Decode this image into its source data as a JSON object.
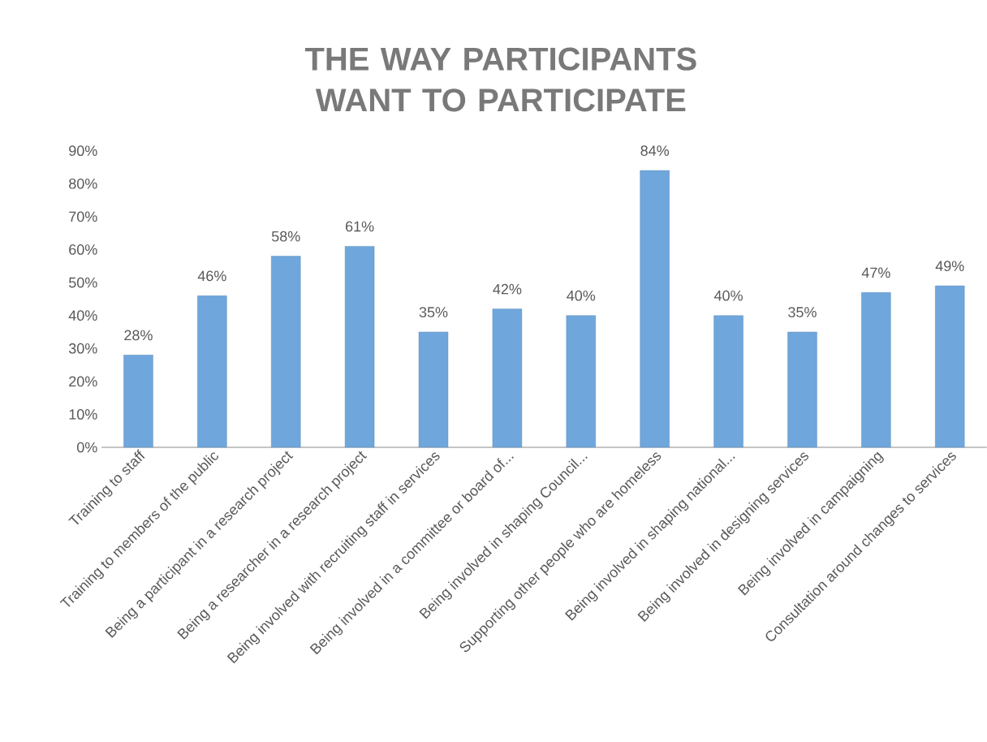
{
  "chart_data": {
    "type": "bar",
    "title": "THE WAY PARTICIPANTS WANT TO PARTICIPATE",
    "categories": [
      "Training to staff",
      "Training to members of the public",
      "Being a participant in a research project",
      "Being a researcher in a research project",
      "Being involved with recruiting staff in services",
      "Being involved in a committee or board of...",
      "Being involved in shaping Council...",
      "Supporting other people who are homeless",
      "Being involved in shaping national...",
      "Being involved in designing services",
      "Being involved in campaigning",
      "Consultation around changes to services"
    ],
    "values": [
      28,
      46,
      58,
      61,
      35,
      42,
      40,
      84,
      40,
      35,
      47,
      49
    ],
    "value_labels": [
      "28%",
      "46%",
      "58%",
      "61%",
      "35%",
      "42%",
      "40%",
      "84%",
      "40%",
      "35%",
      "47%",
      "49%"
    ],
    "color": "#6fa6dc",
    "ylim": [
      0,
      90
    ],
    "yticks": [
      {
        "value": 0,
        "label": "0%"
      },
      {
        "value": 10,
        "label": "10%"
      },
      {
        "value": 20,
        "label": "20%"
      },
      {
        "value": 30,
        "label": "30%"
      },
      {
        "value": 40,
        "label": "40%"
      },
      {
        "value": 50,
        "label": "50%"
      },
      {
        "value": 60,
        "label": "60%"
      },
      {
        "value": 70,
        "label": "70%"
      },
      {
        "value": 80,
        "label": "80%"
      },
      {
        "value": 90,
        "label": "90%"
      }
    ]
  }
}
